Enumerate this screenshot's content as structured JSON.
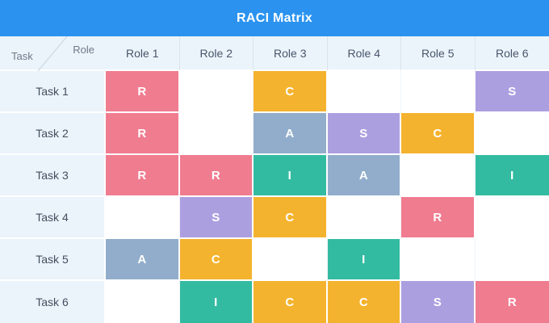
{
  "title": "RACI Matrix",
  "corner": {
    "row_axis_label": "Task",
    "col_axis_label": "Role"
  },
  "columns": [
    "Role 1",
    "Role 2",
    "Role 3",
    "Role 4",
    "Role 5",
    "Role 6"
  ],
  "rows": [
    {
      "label": "Task 1",
      "cells": [
        "R",
        "",
        "C",
        "",
        "",
        "S"
      ]
    },
    {
      "label": "Task 2",
      "cells": [
        "R",
        "",
        "A",
        "S",
        "C",
        ""
      ]
    },
    {
      "label": "Task 3",
      "cells": [
        "R",
        "R",
        "I",
        "A",
        "",
        "I"
      ]
    },
    {
      "label": "Task 4",
      "cells": [
        "",
        "S",
        "C",
        "",
        "R",
        ""
      ]
    },
    {
      "label": "Task 5",
      "cells": [
        "A",
        "C",
        "",
        "I",
        "",
        ""
      ]
    },
    {
      "label": "Task 6",
      "cells": [
        "",
        "I",
        "C",
        "C",
        "S",
        "R"
      ]
    }
  ],
  "colors": {
    "title_bar": "#2b93ef",
    "header_bg": "#ebf4fb",
    "label_bg": "#ebf4fb",
    "diagonal_line": "#d2dde7",
    "R": "#f07c90",
    "A": "#91adcb",
    "C": "#f4b32e",
    "I": "#33bba1",
    "S": "#ac9fe0"
  }
}
